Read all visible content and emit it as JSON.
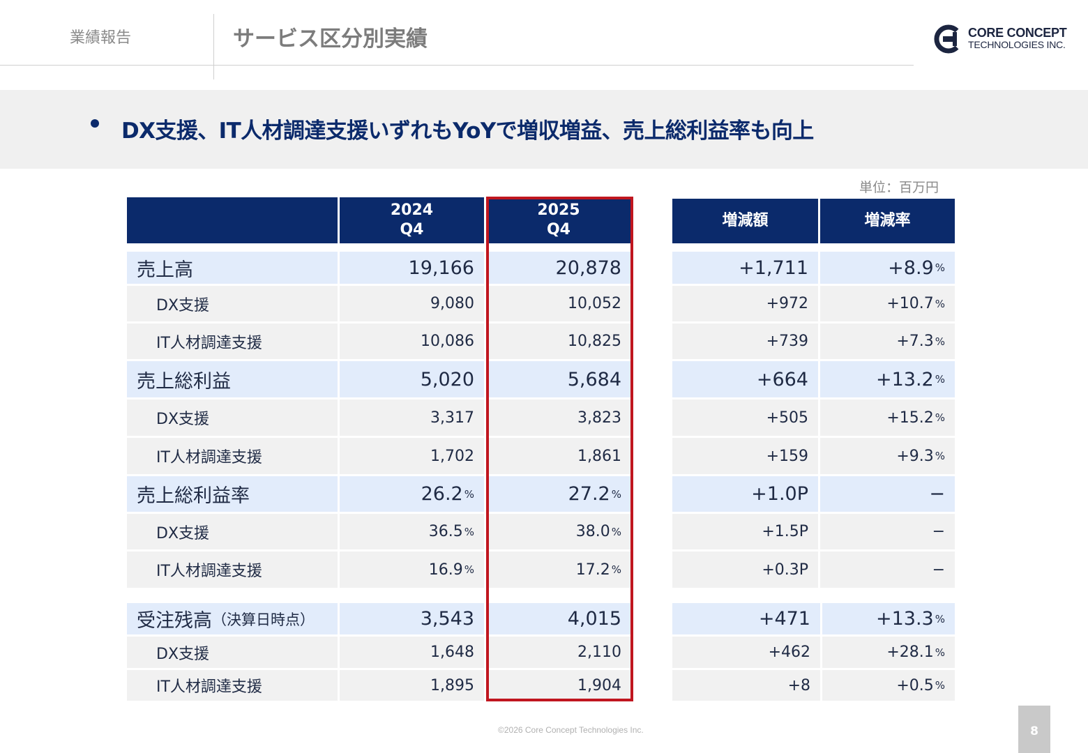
{
  "header": {
    "section": "業績報告",
    "title": "サービス区分別実績"
  },
  "logo": {
    "line1": "CORE CONCEPT",
    "line2": "TECHNOLOGIES INC.",
    "brand_color": "#1c2540"
  },
  "banner": {
    "bullet": "•",
    "text": "DX支援、IT人材調達支援いずれもYoYで増収増益、売上総利益率も向上"
  },
  "unit": "単位：百万円",
  "table": {
    "headers": {
      "col2024_year": "2024",
      "col2024_q": "Q4",
      "col2025_year": "2025",
      "col2025_q": "Q4",
      "diff": "増減額",
      "rate": "増減率"
    },
    "rows": [
      {
        "label": "売上高",
        "v2024": "19,166",
        "v2025": "20,878",
        "diff": "+1,711",
        "rate": "+8.9",
        "rate_unit": "%"
      },
      {
        "label": "DX支援",
        "v2024": "9,080",
        "v2025": "10,052",
        "diff": "+972",
        "rate": "+10.7",
        "rate_unit": "%"
      },
      {
        "label": "IT人材調達支援",
        "v2024": "10,086",
        "v2025": "10,825",
        "diff": "+739",
        "rate": "+7.3",
        "rate_unit": "%"
      },
      {
        "label": "売上総利益",
        "v2024": "5,020",
        "v2025": "5,684",
        "diff": "+664",
        "rate": "+13.2",
        "rate_unit": "%"
      },
      {
        "label": "DX支援",
        "v2024": "3,317",
        "v2025": "3,823",
        "diff": "+505",
        "rate": "+15.2",
        "rate_unit": "%"
      },
      {
        "label": "IT人材調達支援",
        "v2024": "1,702",
        "v2025": "1,861",
        "diff": "+159",
        "rate": "+9.3",
        "rate_unit": "%"
      },
      {
        "label": "売上総利益率",
        "v2024": "26.2",
        "v2024_unit": "%",
        "v2025": "27.2",
        "v2025_unit": "%",
        "diff": "+1.0P",
        "rate": "−"
      },
      {
        "label": "DX支援",
        "v2024": "36.5",
        "v2024_unit": "%",
        "v2025": "38.0",
        "v2025_unit": "%",
        "diff": "+1.5P",
        "rate": "−"
      },
      {
        "label": "IT人材調達支援",
        "v2024": "16.9",
        "v2024_unit": "%",
        "v2025": "17.2",
        "v2025_unit": "%",
        "diff": "+0.3P",
        "rate": "−"
      },
      {
        "label": "受注残高",
        "label_note": "（決算日時点）",
        "v2024": "3,543",
        "v2025": "4,015",
        "diff": "+471",
        "rate": "+13.3",
        "rate_unit": "%"
      },
      {
        "label": "DX支援",
        "v2024": "1,648",
        "v2025": "2,110",
        "diff": "+462",
        "rate": "+28.1",
        "rate_unit": "%"
      },
      {
        "label": "IT人材調達支援",
        "v2024": "1,895",
        "v2025": "1,904",
        "diff": "+8",
        "rate": "+0.5",
        "rate_unit": "%"
      }
    ]
  },
  "colors": {
    "header_navy": "#0b2a6b",
    "main_row_bg": "#e2ecfb",
    "sub_row_bg": "#f1f1f1",
    "highlight_red": "#c0161f"
  },
  "footer": {
    "copyright": "©2026 Core Concept Technologies Inc.",
    "page": "8"
  }
}
